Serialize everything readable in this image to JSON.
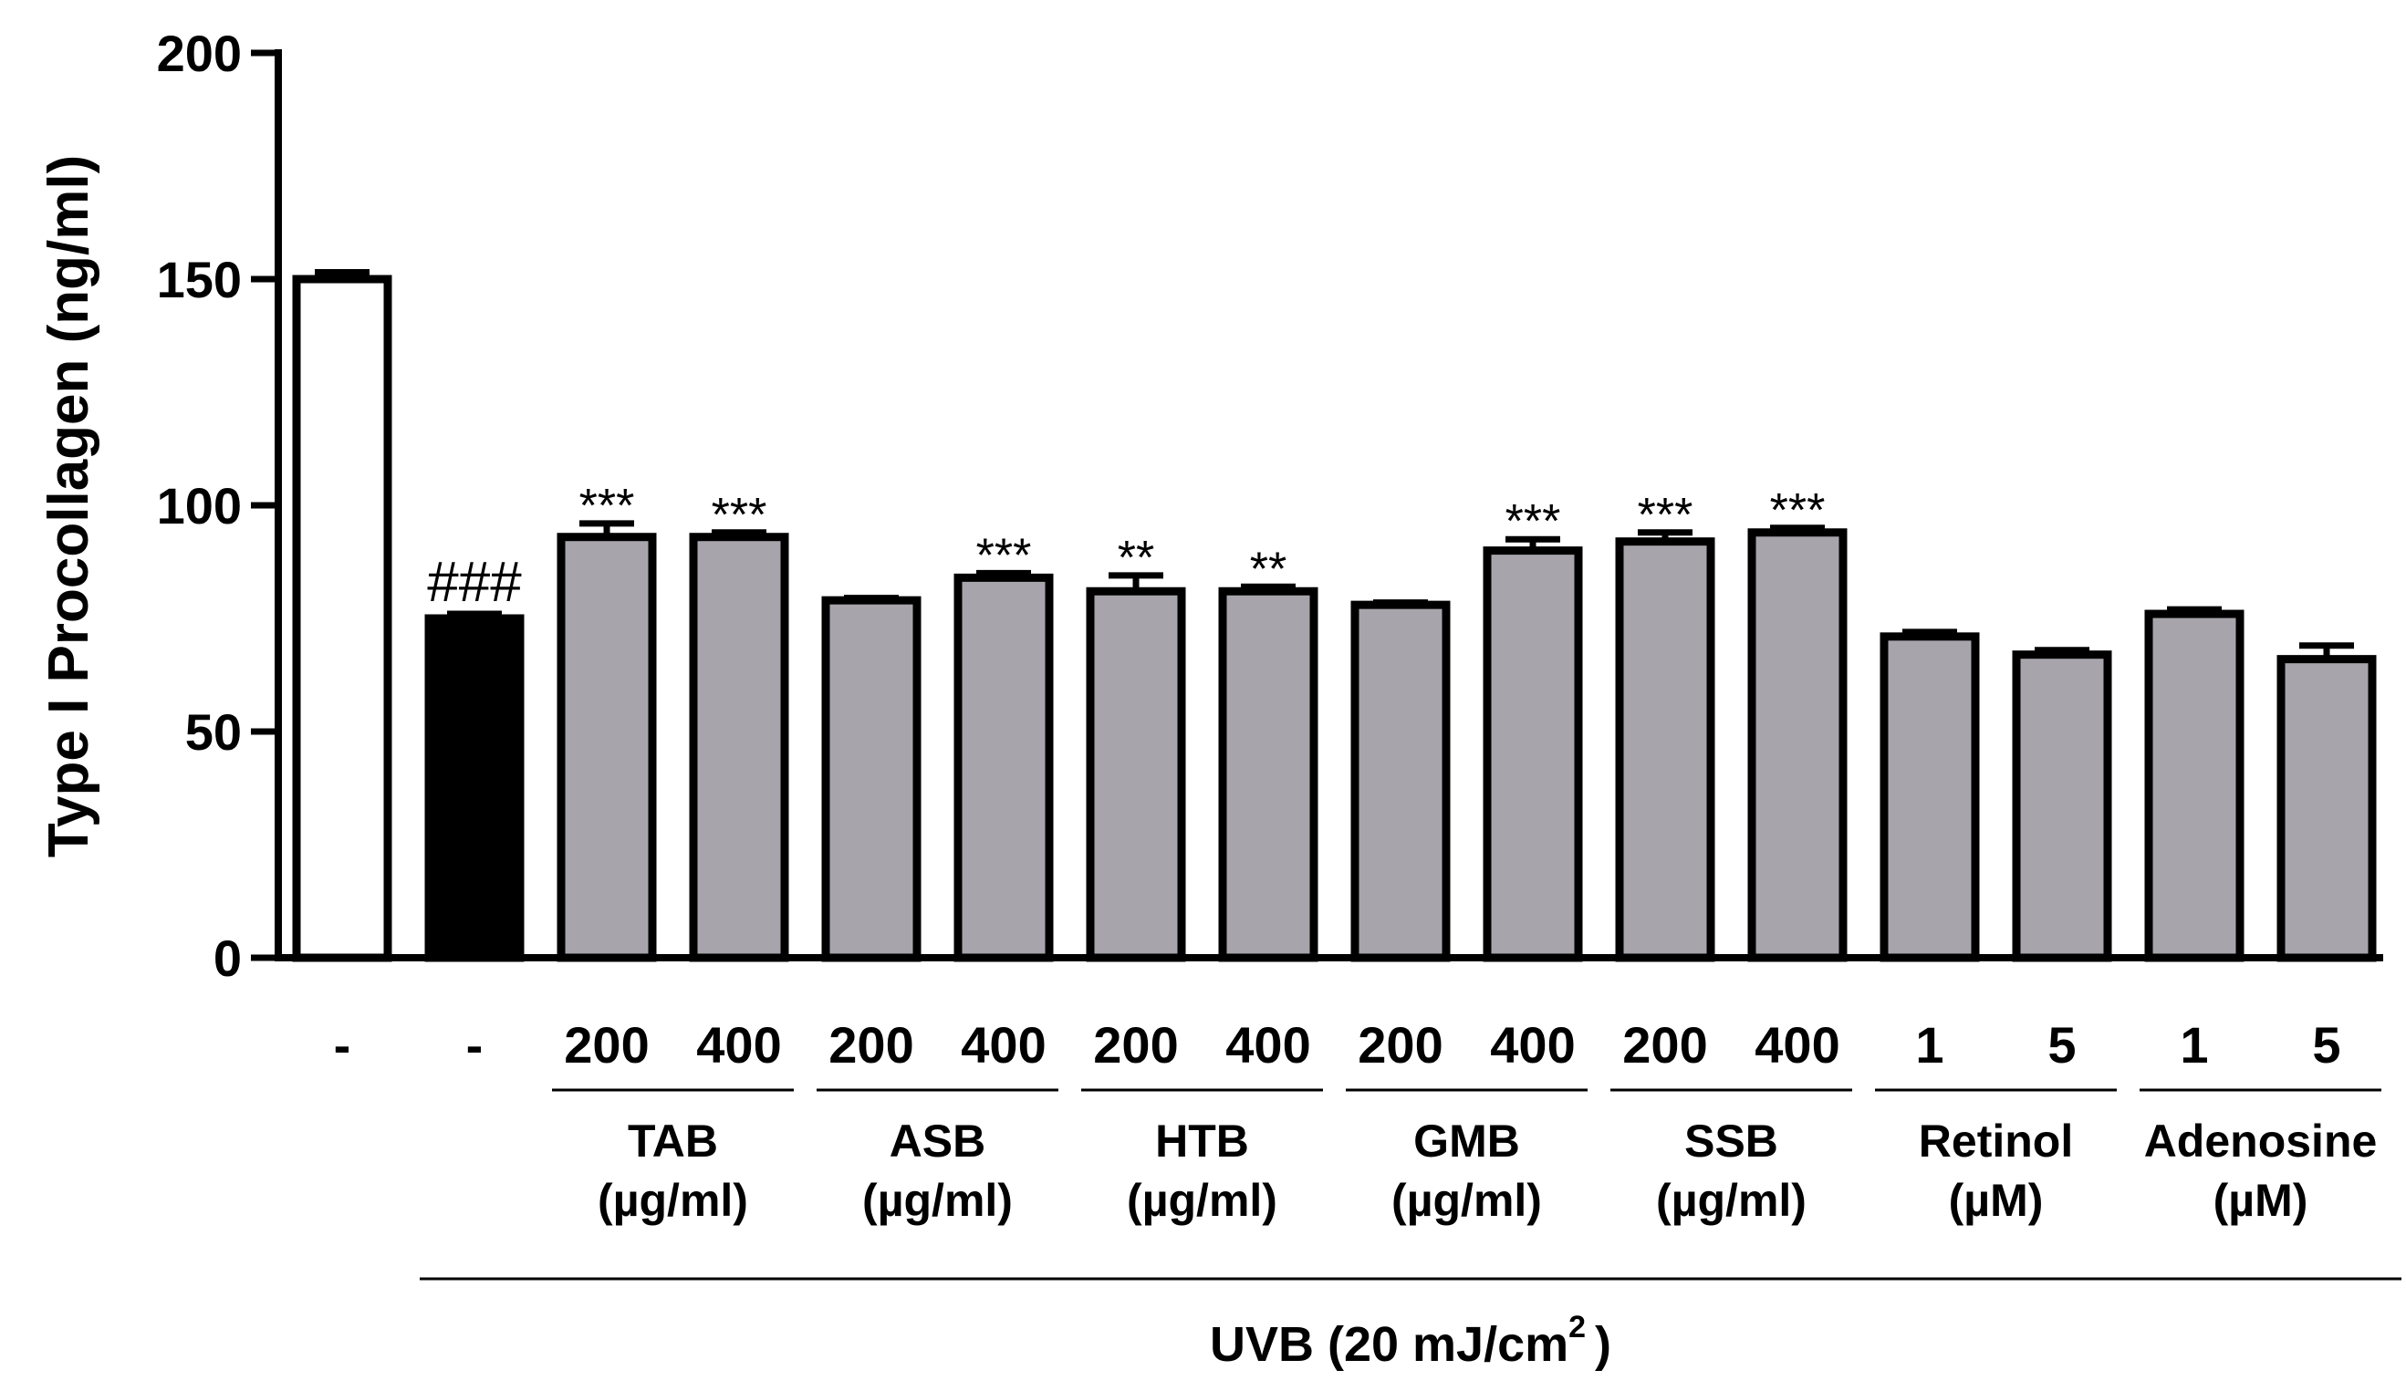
{
  "chart_data": {
    "type": "bar",
    "ylabel": "Type I Procollagen (ng/ml)",
    "ylim": [
      0,
      200
    ],
    "yticks": [
      0,
      50,
      100,
      150,
      200
    ],
    "bars": [
      {
        "label": "-",
        "value": 150,
        "error": 1.5,
        "color": "#ffffff",
        "sig": ""
      },
      {
        "label": "-",
        "value": 75,
        "error": 1.0,
        "color": "#000000",
        "sig": "###"
      },
      {
        "label": "200",
        "value": 93,
        "error": 3.0,
        "color": "#a7a5ab",
        "sig": "***"
      },
      {
        "label": "400",
        "value": 93,
        "error": 1.0,
        "color": "#a7a5ab",
        "sig": "***"
      },
      {
        "label": "200",
        "value": 79,
        "error": 0.5,
        "color": "#a7a5ab",
        "sig": ""
      },
      {
        "label": "400",
        "value": 84,
        "error": 1.0,
        "color": "#a7a5ab",
        "sig": "***"
      },
      {
        "label": "200",
        "value": 81,
        "error": 3.5,
        "color": "#a7a5ab",
        "sig": "**"
      },
      {
        "label": "400",
        "value": 81,
        "error": 1.0,
        "color": "#a7a5ab",
        "sig": "**"
      },
      {
        "label": "200",
        "value": 78,
        "error": 0.5,
        "color": "#a7a5ab",
        "sig": ""
      },
      {
        "label": "400",
        "value": 90,
        "error": 2.5,
        "color": "#a7a5ab",
        "sig": "***"
      },
      {
        "label": "200",
        "value": 92,
        "error": 2.0,
        "color": "#a7a5ab",
        "sig": "***"
      },
      {
        "label": "400",
        "value": 94,
        "error": 1.0,
        "color": "#a7a5ab",
        "sig": "***"
      },
      {
        "label": "1",
        "value": 71,
        "error": 1.0,
        "color": "#a7a5ab",
        "sig": ""
      },
      {
        "label": "5",
        "value": 67,
        "error": 1.0,
        "color": "#a7a5ab",
        "sig": ""
      },
      {
        "label": "1",
        "value": 76,
        "error": 1.0,
        "color": "#a7a5ab",
        "sig": ""
      },
      {
        "label": "5",
        "value": 66,
        "error": 3.0,
        "color": "#a7a5ab",
        "sig": ""
      }
    ],
    "groups": [
      {
        "line1": "TAB",
        "line2": "(µg/ml)",
        "bars": [
          2,
          3
        ]
      },
      {
        "line1": "ASB",
        "line2": "(µg/ml)",
        "bars": [
          4,
          5
        ]
      },
      {
        "line1": "HTB",
        "line2": "(µg/ml)",
        "bars": [
          6,
          7
        ]
      },
      {
        "line1": "GMB",
        "line2": "(µg/ml)",
        "bars": [
          8,
          9
        ]
      },
      {
        "line1": "SSB",
        "line2": "(µg/ml)",
        "bars": [
          10,
          11
        ]
      },
      {
        "line1": "Retinol",
        "line2": "(µM)",
        "bars": [
          12,
          13
        ]
      },
      {
        "line1": "Adenosine",
        "line2": "(µM)",
        "bars": [
          14,
          15
        ]
      }
    ],
    "treatment": {
      "label": "UVB (20 mJ/cm",
      "superscript": "2",
      "close": ")",
      "bars": [
        1,
        15
      ]
    }
  }
}
